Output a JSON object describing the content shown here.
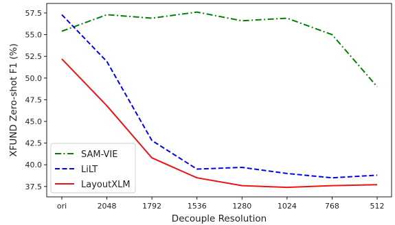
{
  "chart_data": {
    "type": "line",
    "xlabel": "Decouple Resolution",
    "ylabel": "XFUND Zero-shot F1 (%)",
    "categories": [
      "ori",
      "2048",
      "1792",
      "1536",
      "1280",
      "1024",
      "768",
      "512"
    ],
    "ylim": [
      36.3,
      58.6
    ],
    "yticks": [
      "37.5",
      "40.0",
      "42.5",
      "45.0",
      "47.5",
      "50.0",
      "52.5",
      "55.0",
      "57.5"
    ],
    "grid": false,
    "legend_position": "lower-left",
    "series": [
      {
        "name": "SAM-VIE",
        "color": "#008000",
        "style": "dashdot",
        "values": [
          55.4,
          57.3,
          56.9,
          57.6,
          56.6,
          56.9,
          55.0,
          49.0
        ]
      },
      {
        "name": "LiLT",
        "color": "#0000ee",
        "style": "dashed",
        "values": [
          57.3,
          51.9,
          42.8,
          39.5,
          39.7,
          39.0,
          38.5,
          38.8
        ]
      },
      {
        "name": "LayoutXLM",
        "color": "#ee1111",
        "style": "solid",
        "values": [
          52.2,
          46.8,
          40.8,
          38.5,
          37.6,
          37.4,
          37.6,
          37.7
        ]
      }
    ]
  }
}
